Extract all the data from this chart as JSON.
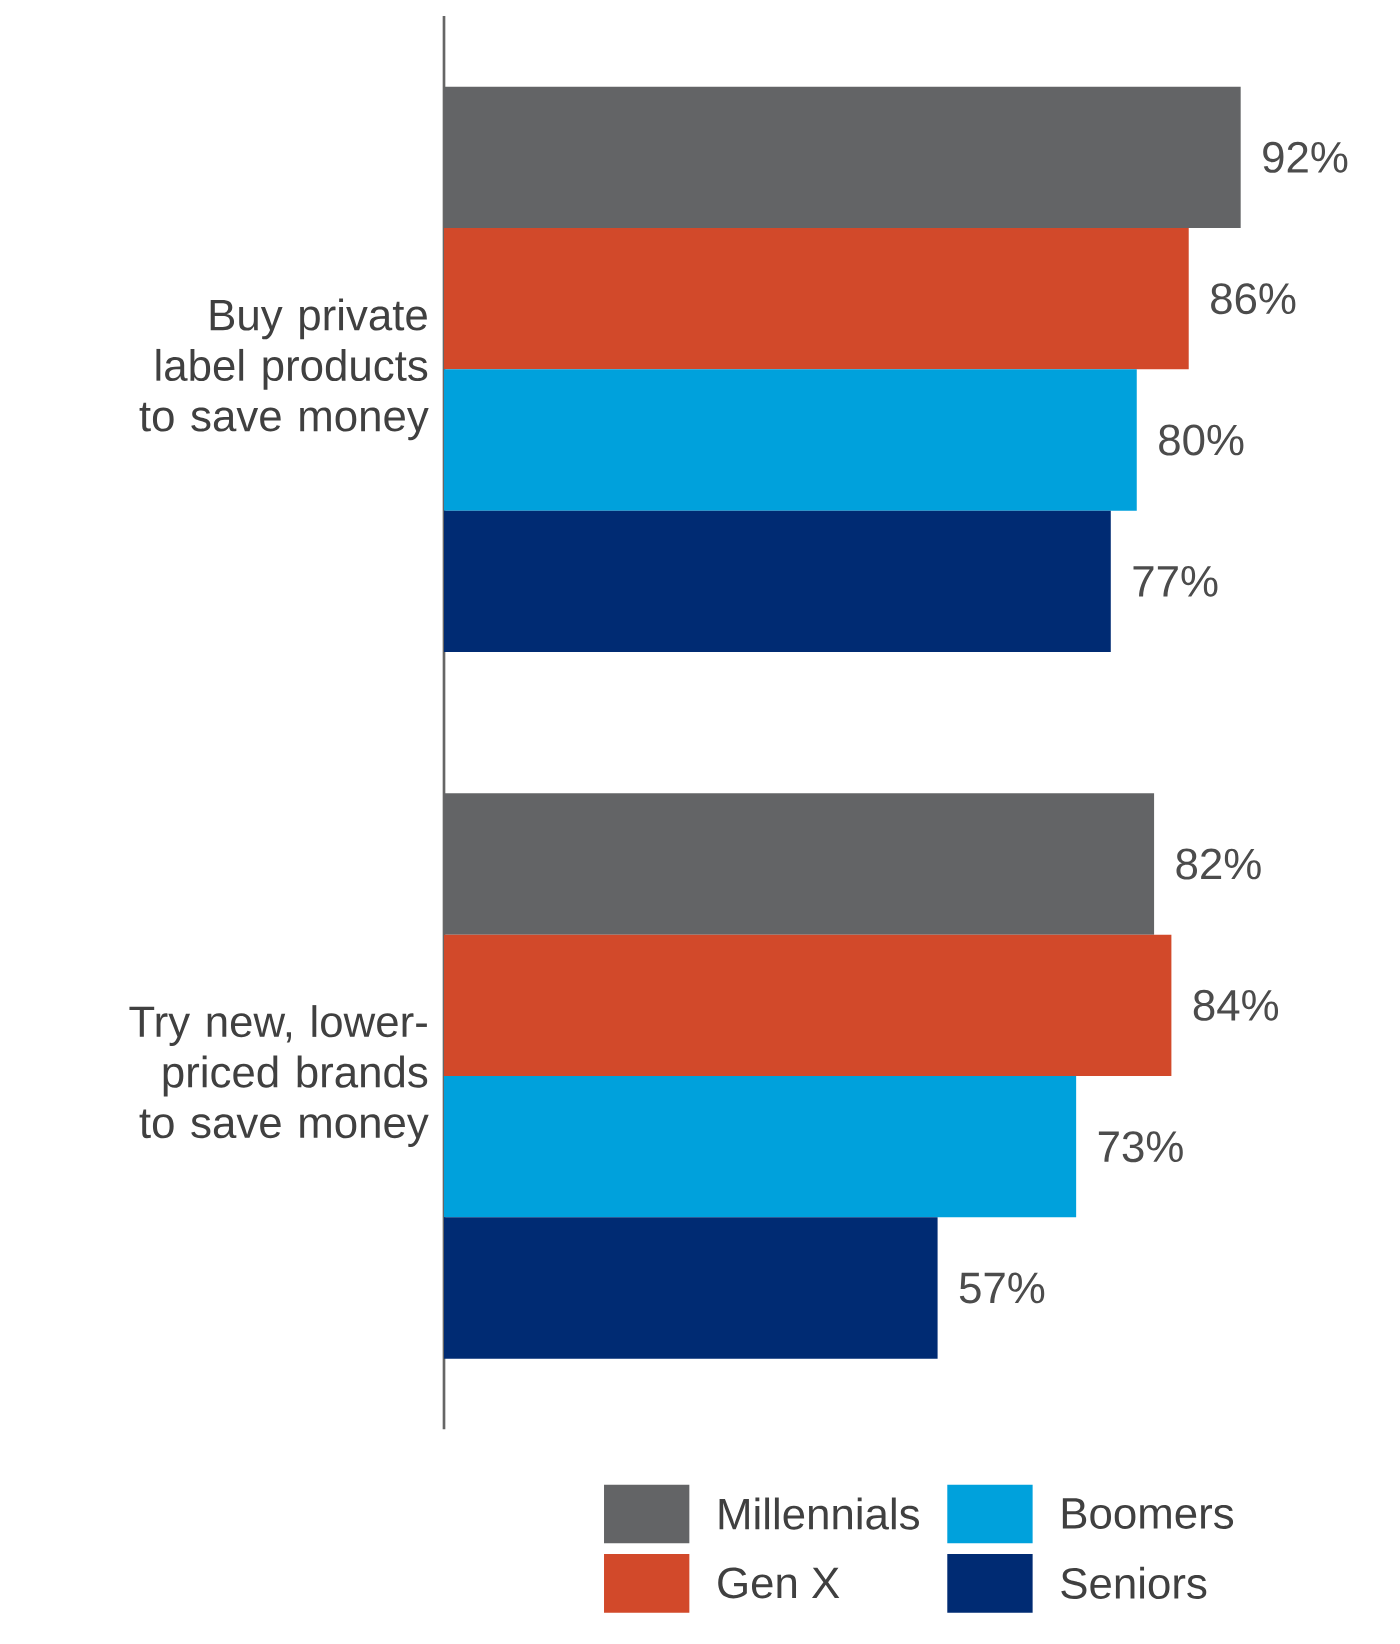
{
  "chart_data": {
    "type": "bar",
    "orientation": "horizontal",
    "categories": [
      "Buy private label products to save money",
      "Try new, lower-priced brands to save money"
    ],
    "series": [
      {
        "name": "Millennials",
        "color": "#636466",
        "values": [
          92,
          82
        ],
        "value_labels": [
          "92%",
          "82%"
        ]
      },
      {
        "name": "Gen X",
        "color": "#d2492a",
        "values": [
          86,
          84
        ],
        "value_labels": [
          "86%",
          "84%"
        ]
      },
      {
        "name": "Boomers",
        "color": "#00a1dc",
        "values": [
          80,
          73
        ],
        "value_labels": [
          "80%",
          "73%"
        ]
      },
      {
        "name": "Seniors",
        "color": "#002b73",
        "values": [
          77,
          57
        ],
        "value_labels": [
          "77%",
          "57%"
        ]
      }
    ],
    "legend": "bottom"
  }
}
